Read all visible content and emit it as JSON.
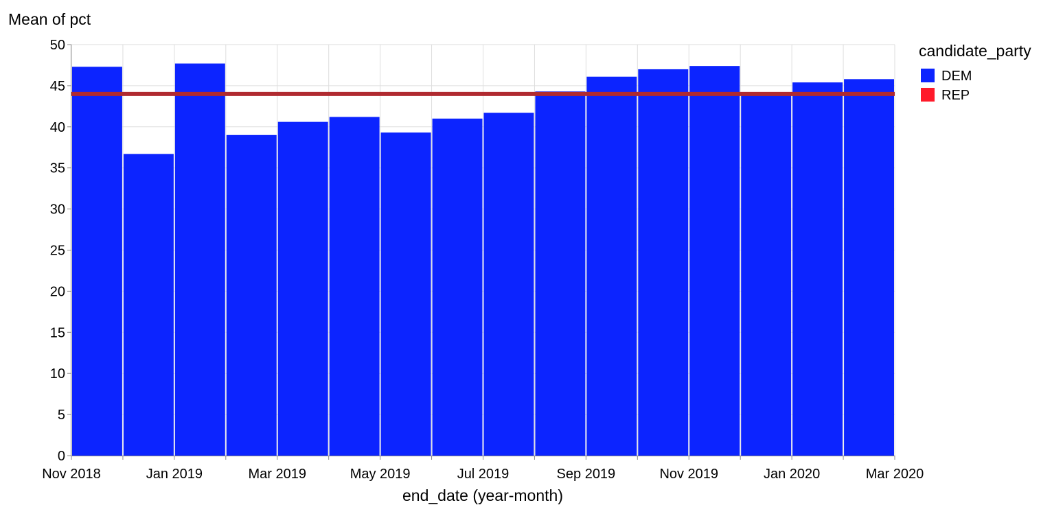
{
  "chart_data": {
    "type": "bar",
    "x_field": "end_date (year-month)",
    "xlabel": "end_date (year-month)",
    "ylabel": "Mean of pct",
    "ylim": [
      0,
      50
    ],
    "yticks": [
      0,
      5,
      10,
      15,
      20,
      25,
      30,
      35,
      40,
      45,
      50
    ],
    "x_tick_labels": [
      "Nov 2018",
      "Jan 2019",
      "Mar 2019",
      "May 2019",
      "Jul 2019",
      "Sep 2019",
      "Nov 2019",
      "Jan 2020",
      "Mar 2020"
    ],
    "grid": true,
    "legend": {
      "title": "candidate_party",
      "position": "top-right",
      "entries": [
        {
          "label": "DEM",
          "color": "#0c24ff"
        },
        {
          "label": "REP",
          "color": "#ff1a2a"
        }
      ]
    },
    "series": [
      {
        "name": "DEM",
        "mark": "bar",
        "color": "#0c24ff",
        "bars": [
          {
            "start": "2018-11",
            "end": "2018-12",
            "value": 47.3
          },
          {
            "start": "2018-12",
            "end": "2019-01",
            "value": 36.7
          },
          {
            "start": "2019-01",
            "end": "2019-02",
            "value": 47.7
          },
          {
            "start": "2019-02",
            "end": "2019-03",
            "value": 39.0
          },
          {
            "start": "2019-03",
            "end": "2019-04",
            "value": 40.6
          },
          {
            "start": "2019-04",
            "end": "2019-05",
            "value": 41.2
          },
          {
            "start": "2019-05",
            "end": "2019-06",
            "value": 39.3
          },
          {
            "start": "2019-06",
            "end": "2019-07",
            "value": 41.0
          },
          {
            "start": "2019-07",
            "end": "2019-08",
            "value": 41.7
          },
          {
            "start": "2019-08",
            "end": "2019-09",
            "value": 44.3
          },
          {
            "start": "2019-09",
            "end": "2019-10",
            "value": 46.1
          },
          {
            "start": "2019-10",
            "end": "2019-11",
            "value": 47.0
          },
          {
            "start": "2019-11",
            "end": "2019-12",
            "value": 47.4
          },
          {
            "start": "2019-12",
            "end": "2020-01",
            "value": 44.1
          },
          {
            "start": "2020-01",
            "end": "2020-02",
            "value": 45.4
          },
          {
            "start": "2020-02",
            "end": "2020-03",
            "value": 45.8
          }
        ]
      },
      {
        "name": "REP",
        "mark": "rule",
        "color": "#b02a30",
        "value": 44.0
      }
    ]
  }
}
